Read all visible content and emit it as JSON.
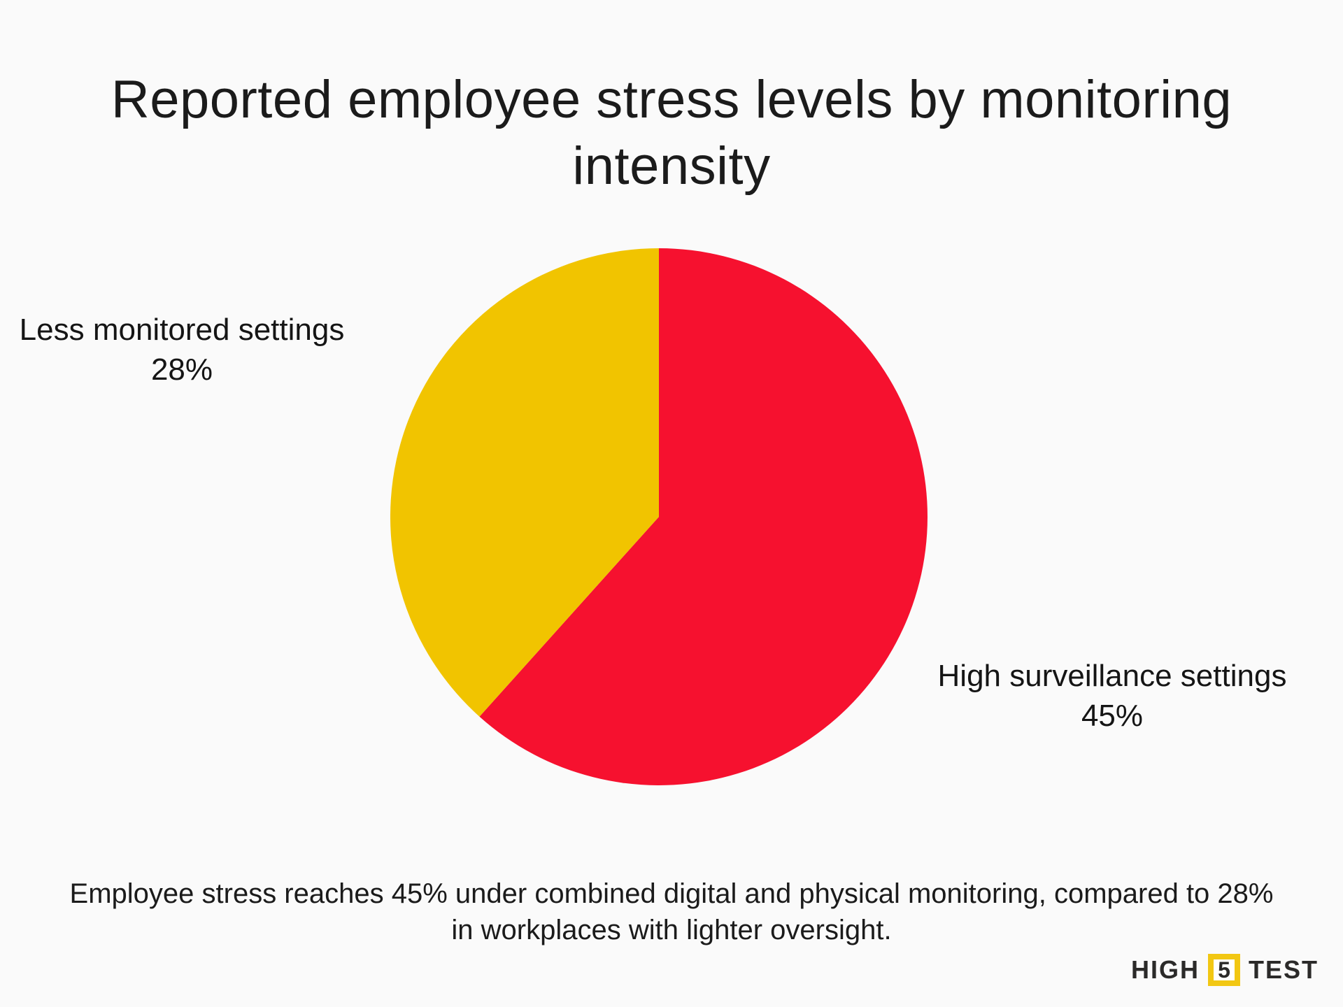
{
  "title": "Reported employee stress levels by monitoring intensity",
  "chart_data": {
    "type": "pie",
    "title": "Reported employee stress levels by monitoring intensity",
    "start_angle_deg": 0,
    "direction": "clockwise",
    "slices": [
      {
        "name": "High surveillance settings",
        "value": 45,
        "pct_label": "45%",
        "color": "#F6112F"
      },
      {
        "name": "Less monitored settings",
        "value": 28,
        "pct_label": "28%",
        "color": "#F1C400"
      }
    ],
    "legend_position": "outside-labels",
    "caption": "Employee stress reaches 45% under combined digital and physical monitoring, compared to 28% in workplaces with lighter oversight."
  },
  "caption": "Employee stress reaches 45% under combined digital and physical monitoring, compared to 28% in workplaces with lighter oversight.",
  "logo": {
    "part1": "HIGH",
    "part2": "5",
    "part3": "TEST"
  },
  "colors": {
    "background": "#FAFAFA",
    "text": "#1B1B1B",
    "red": "#F6112F",
    "yellow": "#F1C400",
    "logo_dark": "#2B2A29",
    "logo_yellow": "#F2C713"
  }
}
